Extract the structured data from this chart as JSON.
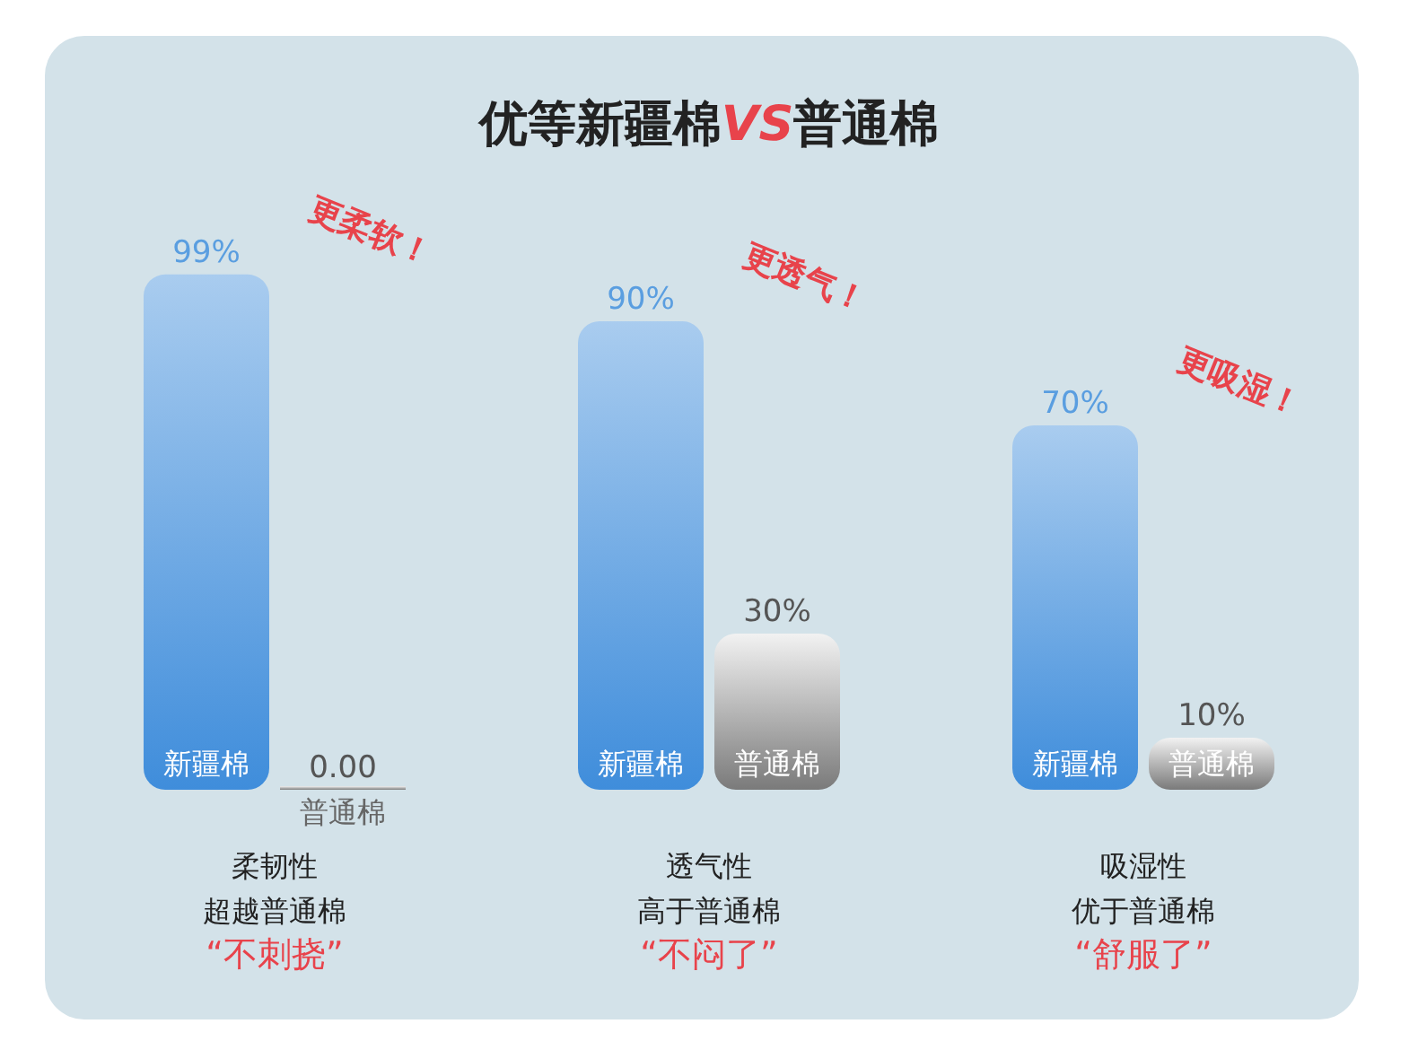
{
  "chart_data": {
    "type": "bar",
    "title": "优等新疆棉VS普通棉",
    "categories": [
      "柔韧性",
      "透气性",
      "吸湿性"
    ],
    "series": [
      {
        "name": "新疆棉",
        "color": "#3f8ddb",
        "values": [
          99,
          90,
          70
        ],
        "value_labels": [
          "99%",
          "90%",
          "70%"
        ]
      },
      {
        "name": "普通棉",
        "color": "#7a7a7a",
        "values": [
          0,
          30,
          10
        ],
        "value_labels": [
          "0.00",
          "30%",
          "10%"
        ]
      }
    ],
    "annotations": [
      "超越普通棉",
      "“不刺挠”",
      "高于普通棉",
      "“不闷了”",
      "优于普通棉",
      "“舒服了”",
      {
        "text": "更柔软！",
        "x": "柔韧性",
        "y": 99
      },
      {
        "text": "更透气！",
        "x": "透气性",
        "y": 90
      },
      {
        "text": "更吸湿！",
        "x": "吸湿性",
        "y": 70
      }
    ],
    "relative": false,
    "legend": false
  }
}
